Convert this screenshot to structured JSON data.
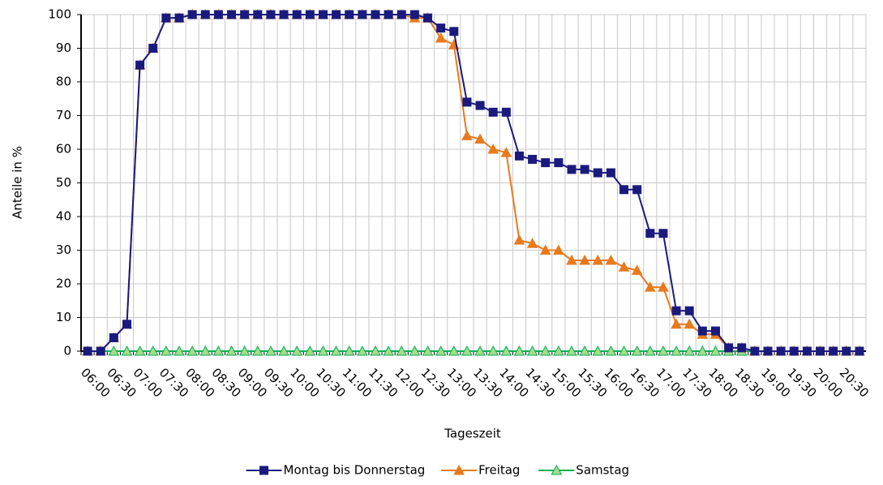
{
  "chart_data": {
    "type": "line",
    "x_label": "Tageszeit",
    "y_label": "Anteile in %",
    "categories": [
      "06:00",
      null,
      "06:30",
      null,
      "07:00",
      null,
      "07:30",
      null,
      "08:00",
      null,
      "08:30",
      null,
      "09:00",
      null,
      "09:30",
      null,
      "10:00",
      null,
      "10:30",
      null,
      "11:00",
      null,
      "11:30",
      null,
      "12:00",
      null,
      "12:30",
      null,
      "13:00",
      null,
      "13:30",
      null,
      "14:00",
      null,
      "14:30",
      null,
      "15:00",
      null,
      "15:30",
      null,
      "16:00",
      null,
      "16:30",
      null,
      "17:00",
      null,
      "17:30",
      null,
      "18:00",
      null,
      "18:30",
      null,
      "19:00",
      null,
      "19:30",
      null,
      "20:00",
      null,
      "20:30",
      null
    ],
    "series": [
      {
        "name": "Montag bis Donnerstag",
        "color": "#1a1a7e",
        "marker": "square",
        "values": [
          0,
          0,
          4,
          8,
          85,
          90,
          99,
          99,
          100,
          100,
          100,
          100,
          100,
          100,
          100,
          100,
          100,
          100,
          100,
          100,
          100,
          100,
          100,
          100,
          100,
          100,
          99,
          96,
          95,
          74,
          73,
          71,
          71,
          58,
          57,
          56,
          56,
          54,
          54,
          53,
          53,
          48,
          48,
          35,
          35,
          12,
          12,
          6,
          6,
          1,
          1,
          0,
          0,
          0,
          0,
          0,
          0,
          0,
          0,
          0
        ]
      },
      {
        "name": "Freitag",
        "color": "#e87a1e",
        "marker": "triangle",
        "values": [
          0,
          0,
          4,
          8,
          85,
          90,
          99,
          99,
          100,
          100,
          100,
          100,
          100,
          100,
          100,
          100,
          100,
          100,
          100,
          100,
          100,
          100,
          100,
          100,
          100,
          99,
          99,
          93,
          91,
          64,
          63,
          60,
          59,
          33,
          32,
          30,
          30,
          27,
          27,
          27,
          27,
          25,
          24,
          19,
          19,
          8,
          8,
          5,
          5,
          1,
          1,
          0,
          0,
          0,
          0,
          0,
          0,
          0,
          0,
          0
        ]
      },
      {
        "name": "Samstag",
        "color": "#00b050",
        "marker": "triangle-light",
        "values": [
          0,
          0,
          0,
          0,
          0,
          0,
          0,
          0,
          0,
          0,
          0,
          0,
          0,
          0,
          0,
          0,
          0,
          0,
          0,
          0,
          0,
          0,
          0,
          0,
          0,
          0,
          0,
          0,
          0,
          0,
          0,
          0,
          0,
          0,
          0,
          0,
          0,
          0,
          0,
          0,
          0,
          0,
          0,
          0,
          0,
          0,
          0,
          0,
          0,
          0,
          0,
          0,
          0,
          0,
          0,
          0,
          0,
          0,
          0,
          0
        ]
      }
    ],
    "ylim": [
      0,
      100
    ],
    "yticks": [
      0,
      10,
      20,
      30,
      40,
      50,
      60,
      70,
      80,
      90,
      100
    ],
    "grid": true,
    "legend": "bottom"
  }
}
